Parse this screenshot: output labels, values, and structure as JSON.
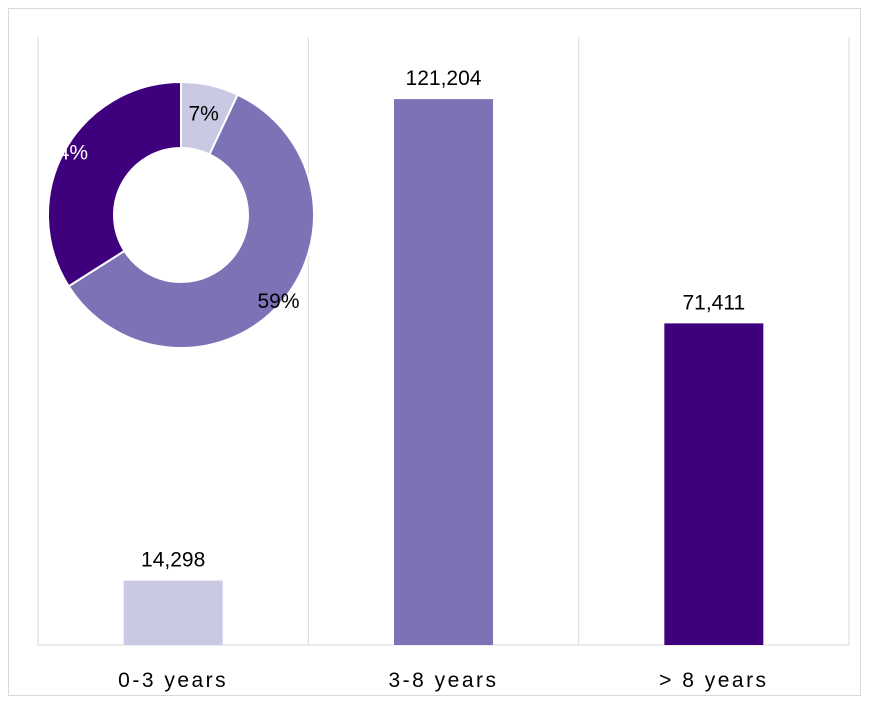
{
  "chart_data": [
    {
      "type": "bar",
      "categories": [
        "0-3 years",
        "3-8 years",
        "> 8 years"
      ],
      "values": [
        14298,
        121204,
        71411
      ],
      "value_labels": [
        "14,298",
        "121,204",
        "71,411"
      ],
      "colors": [
        "#c9c9e3",
        "#7b73b6",
        "#3f007d"
      ],
      "ylim": [
        0,
        135000
      ],
      "grid": "vertical-separators"
    },
    {
      "type": "pie",
      "style": "donut",
      "categories": [
        "0-3 years",
        "3-8 years",
        "> 8 years"
      ],
      "values": [
        7,
        59,
        34
      ],
      "value_labels": [
        "7%",
        "59%",
        "34%"
      ],
      "colors": [
        "#c9c9e3",
        "#7b73b6",
        "#3f007d"
      ],
      "label_colors": [
        "#000000",
        "#000000",
        "#ffffff"
      ]
    }
  ]
}
